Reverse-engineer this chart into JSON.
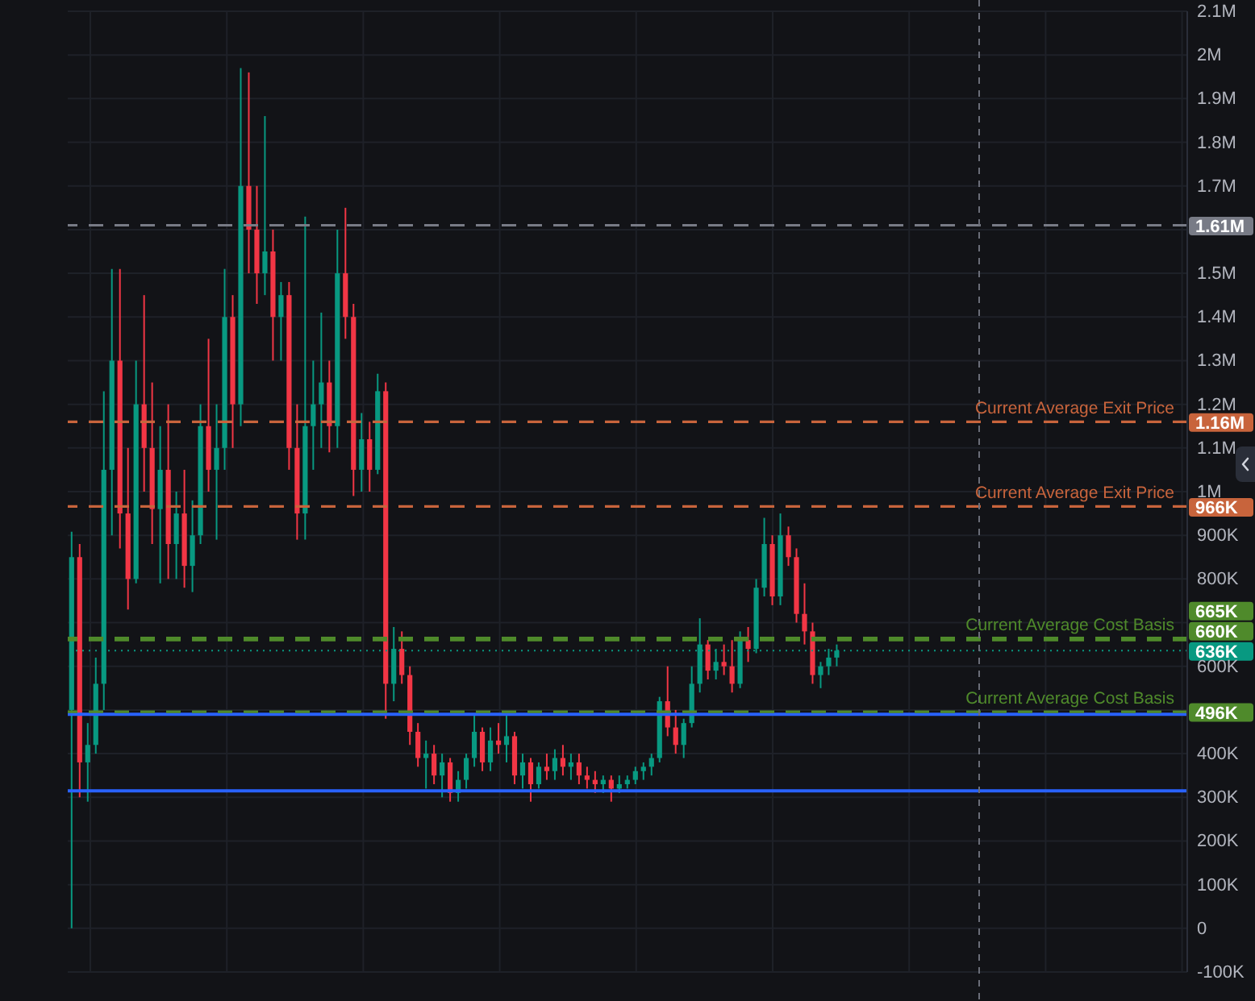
{
  "chart_data": {
    "type": "candlestick",
    "categories": [
      null,
      null,
      null,
      null,
      null,
      null,
      null,
      null,
      null,
      null,
      null,
      null,
      null,
      null,
      null,
      null,
      null,
      null,
      null,
      null,
      null,
      null,
      null,
      null,
      null,
      null,
      null,
      null,
      null,
      null,
      null,
      null,
      null,
      null,
      null,
      null,
      null,
      null,
      null,
      null,
      null,
      null,
      null,
      null,
      null,
      null,
      null,
      null,
      null,
      null,
      null,
      null,
      null,
      null,
      null,
      null,
      null,
      null,
      null,
      null,
      null,
      null,
      null,
      null,
      null,
      null,
      null,
      null,
      null,
      null,
      null,
      null,
      null,
      null,
      null,
      null,
      null,
      null,
      null,
      null,
      null,
      null,
      null,
      null,
      null,
      null,
      null,
      null,
      null,
      null,
      null,
      null,
      null,
      null,
      null,
      null,
      null,
      null,
      null,
      null,
      null,
      null,
      null,
      null,
      null,
      null,
      null,
      null,
      null,
      null,
      null,
      null,
      null,
      null,
      null,
      null,
      null,
      null,
      null,
      null,
      null,
      null,
      null,
      null,
      null,
      null,
      null,
      null,
      null,
      null,
      null,
      null,
      null,
      null,
      null,
      null,
      null,
      null,
      null
    ],
    "ohlc": [
      [
        500000,
        908000,
        0,
        850000
      ],
      [
        850000,
        880000,
        300000,
        380000
      ],
      [
        380000,
        470000,
        290000,
        420000
      ],
      [
        420000,
        620000,
        400000,
        560000
      ],
      [
        560000,
        1230000,
        500000,
        1050000
      ],
      [
        1050000,
        1510000,
        900000,
        1300000
      ],
      [
        1300000,
        1510000,
        870000,
        950000
      ],
      [
        950000,
        1100000,
        730000,
        800000
      ],
      [
        800000,
        1300000,
        790000,
        1200000
      ],
      [
        1200000,
        1450000,
        1000000,
        1100000
      ],
      [
        1100000,
        1250000,
        880000,
        960000
      ],
      [
        960000,
        1150000,
        790000,
        1050000
      ],
      [
        1050000,
        1200000,
        800000,
        880000
      ],
      [
        880000,
        1000000,
        800000,
        950000
      ],
      [
        950000,
        1050000,
        780000,
        830000
      ],
      [
        830000,
        980000,
        770000,
        900000
      ],
      [
        900000,
        1200000,
        880000,
        1150000
      ],
      [
        1150000,
        1350000,
        1000000,
        1050000
      ],
      [
        1050000,
        1200000,
        890000,
        1100000
      ],
      [
        1100000,
        1510000,
        1050000,
        1400000
      ],
      [
        1400000,
        1450000,
        1100000,
        1200000
      ],
      [
        1200000,
        1970000,
        1150000,
        1700000
      ],
      [
        1700000,
        1960000,
        1500000,
        1600000
      ],
      [
        1600000,
        1700000,
        1430000,
        1500000
      ],
      [
        1500000,
        1860000,
        1450000,
        1550000
      ],
      [
        1550000,
        1600000,
        1300000,
        1400000
      ],
      [
        1400000,
        1480000,
        1300000,
        1450000
      ],
      [
        1450000,
        1480000,
        1050000,
        1100000
      ],
      [
        1100000,
        1200000,
        890000,
        950000
      ],
      [
        950000,
        1630000,
        890000,
        1150000
      ],
      [
        1150000,
        1300000,
        1050000,
        1200000
      ],
      [
        1200000,
        1410000,
        1100000,
        1250000
      ],
      [
        1250000,
        1300000,
        1090000,
        1150000
      ],
      [
        1150000,
        1600000,
        1100000,
        1500000
      ],
      [
        1500000,
        1650000,
        1350000,
        1400000
      ],
      [
        1400000,
        1430000,
        990000,
        1050000
      ],
      [
        1050000,
        1180000,
        1000000,
        1120000
      ],
      [
        1120000,
        1160000,
        1000000,
        1050000
      ],
      [
        1050000,
        1270000,
        1040000,
        1230000
      ],
      [
        1230000,
        1250000,
        480000,
        560000
      ],
      [
        560000,
        690000,
        520000,
        640000
      ],
      [
        640000,
        680000,
        560000,
        580000
      ],
      [
        580000,
        600000,
        420000,
        450000
      ],
      [
        450000,
        470000,
        370000,
        390000
      ],
      [
        390000,
        430000,
        320000,
        400000
      ],
      [
        400000,
        420000,
        330000,
        350000
      ],
      [
        350000,
        400000,
        300000,
        380000
      ],
      [
        380000,
        390000,
        290000,
        310000
      ],
      [
        310000,
        360000,
        290000,
        340000
      ],
      [
        340000,
        400000,
        320000,
        390000
      ],
      [
        390000,
        490000,
        370000,
        450000
      ],
      [
        450000,
        460000,
        360000,
        380000
      ],
      [
        380000,
        460000,
        360000,
        430000
      ],
      [
        430000,
        470000,
        400000,
        420000
      ],
      [
        420000,
        490000,
        380000,
        440000
      ],
      [
        440000,
        450000,
        330000,
        350000
      ],
      [
        350000,
        400000,
        320000,
        380000
      ],
      [
        380000,
        390000,
        290000,
        330000
      ],
      [
        330000,
        380000,
        320000,
        370000
      ],
      [
        370000,
        400000,
        340000,
        360000
      ],
      [
        360000,
        410000,
        340000,
        390000
      ],
      [
        390000,
        420000,
        350000,
        370000
      ],
      [
        370000,
        400000,
        340000,
        380000
      ],
      [
        380000,
        400000,
        330000,
        350000
      ],
      [
        350000,
        370000,
        320000,
        340000
      ],
      [
        340000,
        360000,
        310000,
        330000
      ],
      [
        330000,
        350000,
        310000,
        340000
      ],
      [
        340000,
        350000,
        290000,
        320000
      ],
      [
        320000,
        350000,
        310000,
        330000
      ],
      [
        330000,
        350000,
        320000,
        340000
      ],
      [
        340000,
        370000,
        330000,
        360000
      ],
      [
        360000,
        380000,
        340000,
        370000
      ],
      [
        370000,
        400000,
        350000,
        390000
      ],
      [
        390000,
        530000,
        380000,
        520000
      ],
      [
        520000,
        600000,
        440000,
        460000
      ],
      [
        460000,
        500000,
        400000,
        420000
      ],
      [
        420000,
        480000,
        390000,
        470000
      ],
      [
        470000,
        600000,
        460000,
        560000
      ],
      [
        560000,
        710000,
        540000,
        650000
      ],
      [
        650000,
        660000,
        570000,
        590000
      ],
      [
        590000,
        640000,
        570000,
        610000
      ],
      [
        610000,
        650000,
        580000,
        600000
      ],
      [
        600000,
        660000,
        540000,
        560000
      ],
      [
        560000,
        680000,
        550000,
        660000
      ],
      [
        660000,
        690000,
        610000,
        640000
      ],
      [
        640000,
        800000,
        630000,
        780000
      ],
      [
        780000,
        940000,
        760000,
        880000
      ],
      [
        880000,
        900000,
        740000,
        760000
      ],
      [
        760000,
        950000,
        740000,
        900000
      ],
      [
        900000,
        920000,
        830000,
        850000
      ],
      [
        850000,
        870000,
        700000,
        720000
      ],
      [
        720000,
        790000,
        650000,
        680000
      ],
      [
        680000,
        700000,
        560000,
        580000
      ],
      [
        580000,
        610000,
        550000,
        600000
      ],
      [
        600000,
        640000,
        580000,
        620000
      ],
      [
        620000,
        650000,
        600000,
        636000
      ],
      null,
      null,
      null,
      null,
      null,
      null,
      null,
      null,
      null,
      null,
      null,
      null,
      null,
      null,
      null,
      null,
      null,
      null,
      null,
      null,
      null,
      null,
      null,
      null,
      null,
      null,
      null,
      null,
      null,
      null,
      null,
      null,
      null,
      null,
      null,
      null,
      null,
      null,
      null,
      null,
      null,
      null,
      null
    ],
    "colors": [
      "#089981",
      "#f23645",
      "#089981",
      "#089981",
      "#089981",
      "#089981",
      "#f23645",
      "#f23645",
      "#089981",
      "#f23645",
      "#f23645",
      "#089981",
      "#f23645",
      "#089981",
      "#f23645",
      "#089981",
      "#089981",
      "#f23645",
      "#089981",
      "#089981",
      "#f23645",
      "#089981",
      "#f23645",
      "#f23645",
      "#089981",
      "#f23645",
      "#089981",
      "#f23645",
      "#f23645",
      "#089981",
      "#089981",
      "#089981",
      "#f23645",
      "#089981",
      "#f23645",
      "#f23645",
      "#089981",
      "#f23645",
      "#089981",
      "#f23645",
      "#089981",
      "#f23645",
      "#f23645",
      "#f23645",
      "#089981",
      "#f23645",
      "#089981",
      "#f23645",
      "#089981",
      "#089981",
      "#089981",
      "#f23645",
      "#089981",
      "#f23645",
      "#089981",
      "#f23645",
      "#089981",
      "#f23645",
      "#089981",
      "#f23645",
      "#089981",
      "#f23645",
      "#089981",
      "#f23645",
      "#f23645",
      "#f23645",
      "#089981",
      "#f23645",
      "#089981",
      "#089981",
      "#089981",
      "#089981",
      "#089981",
      "#089981",
      "#f23645",
      "#f23645",
      "#089981",
      "#089981",
      "#089981",
      "#f23645",
      "#089981",
      "#f23645",
      "#f23645",
      "#089981",
      "#f23645",
      "#089981",
      "#089981",
      "#f23645",
      "#089981",
      "#f23645",
      "#f23645",
      "#f23645",
      "#f23645",
      "#089981",
      "#089981",
      "#089981",
      null,
      null,
      null,
      null,
      null,
      null,
      null,
      null,
      null,
      null,
      null,
      null,
      null,
      null,
      null,
      null,
      null,
      null,
      null,
      null,
      null,
      null,
      null,
      null,
      null,
      null,
      null,
      null,
      null,
      null,
      null,
      null,
      null,
      null,
      null,
      null,
      null,
      null,
      null,
      null,
      null,
      null,
      null
    ],
    "ylim": [
      -100000,
      2100000
    ],
    "yticks": [
      {
        "value": 2100000,
        "label": "2.1M"
      },
      {
        "value": 2000000,
        "label": "2M"
      },
      {
        "value": 1900000,
        "label": "1.9M"
      },
      {
        "value": 1800000,
        "label": "1.8M"
      },
      {
        "value": 1700000,
        "label": "1.7M"
      },
      {
        "value": 1600000,
        "label": null
      },
      {
        "value": 1500000,
        "label": "1.5M"
      },
      {
        "value": 1400000,
        "label": "1.4M"
      },
      {
        "value": 1300000,
        "label": "1.3M"
      },
      {
        "value": 1200000,
        "label": "1.2M"
      },
      {
        "value": 1100000,
        "label": "1.1M"
      },
      {
        "value": 1000000,
        "label": "1M"
      },
      {
        "value": 900000,
        "label": "900K"
      },
      {
        "value": 800000,
        "label": "800K"
      },
      {
        "value": 700000,
        "label": null
      },
      {
        "value": 600000,
        "label": "600K"
      },
      {
        "value": 500000,
        "label": null
      },
      {
        "value": 400000,
        "label": "400K"
      },
      {
        "value": 300000,
        "label": "300K"
      },
      {
        "value": 200000,
        "label": "200K"
      },
      {
        "value": 100000,
        "label": "100K"
      },
      0,
      {
        "value": -100000,
        "label": "-100K"
      }
    ],
    "grid": true,
    "tick_labels": "y",
    "ref_lines": [
      {
        "axis": "y",
        "value": 490000,
        "color": "#2962ff",
        "line_style": "solid"
      },
      {
        "axis": "y",
        "value": 315000,
        "color": "#2962ff",
        "line_style": "solid"
      },
      {
        "axis": "y",
        "value": 1610000,
        "label": "1.61M",
        "color": "#787b86",
        "line_style": "dashed"
      },
      {
        "axis": "y",
        "value": 1160000,
        "label": "1.16M",
        "color": "#c8643c",
        "line_style": "dashed"
      },
      {
        "axis": "y",
        "value": 966000,
        "label": "966K",
        "color": "#c8643c",
        "line_style": "dashed"
      },
      {
        "axis": "y",
        "value": 665000,
        "label": "665K",
        "color": "#4f8a2b",
        "line_style": "dashed"
      },
      {
        "axis": "y",
        "value": 660000,
        "label": "660K",
        "color": "#4f8a2b",
        "line_style": "dashed"
      },
      {
        "axis": "y",
        "value": 636000,
        "label": "636K",
        "color": "#089981",
        "line_style": "dotted"
      },
      {
        "axis": "y",
        "value": 496000,
        "label": "496K",
        "color": "#4f8a2b",
        "line_style": "dashed"
      }
    ],
    "annotations": [
      {
        "text": "Current Average Exit Price",
        "y": 1160000
      },
      {
        "text": "Current Average Exit Price",
        "y": 966000
      },
      {
        "text": "Current Average Cost Basis",
        "y": 665000
      },
      {
        "text": "Current Average Cost Basis",
        "y": 496000
      }
    ]
  }
}
